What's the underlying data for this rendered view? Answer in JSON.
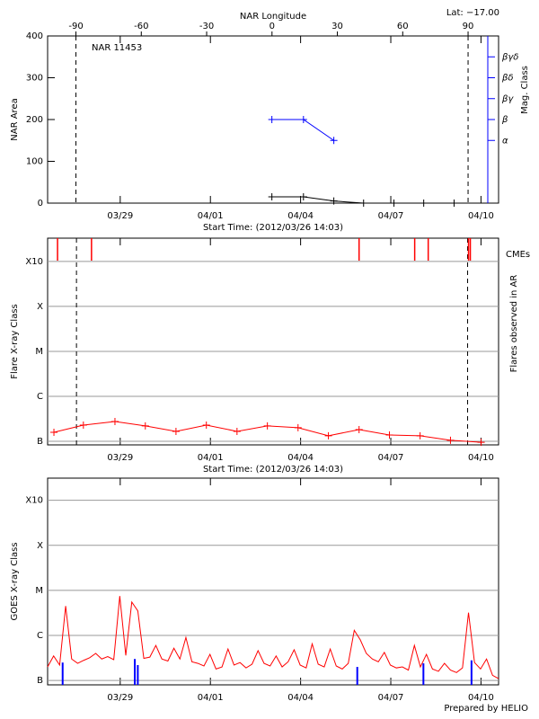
{
  "chart_data": [
    {
      "type": "line",
      "title": "NAR 11453",
      "annotation": "Lat: −17.00",
      "xlabel": "Start Time: (2012/03/26 14:03)",
      "ylabel": "NAR Area",
      "xlim": [
        0,
        15
      ],
      "xticks": [
        {
          "value": 2.415,
          "label": "03/29"
        },
        {
          "value": 5.415,
          "label": "04/01"
        },
        {
          "value": 8.415,
          "label": "04/04"
        },
        {
          "value": 11.415,
          "label": "04/07"
        },
        {
          "value": 14.415,
          "label": "04/10"
        }
      ],
      "ylim": [
        0,
        400
      ],
      "yticks": [
        0,
        100,
        200,
        300,
        400
      ],
      "x2label": "NAR Longitude",
      "x2lim": [
        -103,
        104
      ],
      "x2ticks": [
        -90,
        -60,
        -30,
        0,
        30,
        60,
        90
      ],
      "vlines_x2": [
        -90,
        90
      ],
      "y2label": "Mag. Class",
      "y2color": "#0000ff",
      "y2lim": [
        0,
        8
      ],
      "y2ticks": [
        {
          "value": 3,
          "label": "α"
        },
        {
          "value": 4,
          "label": "β"
        },
        {
          "value": 5,
          "label": "βγ"
        },
        {
          "value": 6,
          "label": "βδ"
        },
        {
          "value": 7,
          "label": "βγδ"
        }
      ],
      "series": [
        {
          "color": "#000000",
          "x": [
            7.46,
            8.51,
            9.52,
            10.51,
            11.52,
            12.51,
            13.52
          ],
          "values": [
            15,
            15,
            5,
            0,
            0,
            0,
            0
          ]
        },
        {
          "color": "#0000ff",
          "axis": "y2",
          "x": [
            7.46,
            8.51,
            9.52
          ],
          "values": [
            4,
            4,
            3
          ]
        }
      ]
    },
    {
      "type": "line",
      "xlabel": "Start Time: (2012/03/26 14:03)",
      "ylabel": "Flare X-ray Class",
      "y2label": "Flares observed in AR",
      "log_y": true,
      "grid": true,
      "xlim": [
        0,
        15
      ],
      "xticks": [
        {
          "value": 2.415,
          "label": "03/29"
        },
        {
          "value": 5.415,
          "label": "04/01"
        },
        {
          "value": 8.415,
          "label": "04/04"
        },
        {
          "value": 11.415,
          "label": "04/07"
        },
        {
          "value": 14.415,
          "label": "04/10"
        }
      ],
      "ylim": [
        8.3e-08,
        0.0033
      ],
      "yticks": [
        {
          "value": 1e-07,
          "label": "B"
        },
        {
          "value": 1e-06,
          "label": "C"
        },
        {
          "value": 1e-05,
          "label": "M"
        },
        {
          "value": 0.0001,
          "label": "X"
        },
        {
          "value": 0.001,
          "label": "X10"
        }
      ],
      "vlines": [
        0.96,
        13.97
      ],
      "series": [
        {
          "color": "#ff0000",
          "marker": "+",
          "x": [
            0.21,
            1.19,
            2.24,
            3.25,
            4.27,
            5.28,
            6.3,
            7.31,
            8.33,
            9.34,
            10.36,
            11.37,
            12.39,
            13.4,
            14.42
          ],
          "values": [
            1.58e-07,
            2.29e-07,
            2.75e-07,
            2.19e-07,
            1.66e-07,
            2.29e-07,
            1.66e-07,
            2.19e-07,
            2e-07,
            1.32e-07,
            1.82e-07,
            1.38e-07,
            1.32e-07,
            1.05e-07,
            9.5e-08
          ]
        }
      ],
      "cmes": {
        "name": "CMEs",
        "color": "#ff0000",
        "x": [
          0.33,
          1.46,
          10.36,
          12.21,
          12.66,
          14.0,
          14.06
        ]
      }
    },
    {
      "type": "line",
      "ylabel": "GOES X-ray Class",
      "log_y": true,
      "grid": true,
      "xlim": [
        0,
        15
      ],
      "xticks": [
        {
          "value": 2.415,
          "label": "03/29"
        },
        {
          "value": 5.415,
          "label": "04/01"
        },
        {
          "value": 8.415,
          "label": "04/04"
        },
        {
          "value": 11.415,
          "label": "04/07"
        },
        {
          "value": 14.415,
          "label": "04/10"
        }
      ],
      "ylim": [
        8e-08,
        0.0031
      ],
      "yticks": [
        {
          "value": 1e-07,
          "label": "B"
        },
        {
          "value": 1e-06,
          "label": "C"
        },
        {
          "value": 1e-05,
          "label": "M"
        },
        {
          "value": 0.0001,
          "label": "X"
        },
        {
          "value": 0.001,
          "label": "X10"
        }
      ],
      "footer": "Prepared by HELIO",
      "series": [
        {
          "color": "#ff0000",
          "x": [
            0,
            0.2,
            0.4,
            0.6,
            0.8,
            1,
            1.2,
            1.4,
            1.6,
            1.8,
            2,
            2.2,
            2.4,
            2.6,
            2.8,
            3,
            3.2,
            3.4,
            3.6,
            3.8,
            4,
            4.2,
            4.4,
            4.6,
            4.8,
            5,
            5.2,
            5.4,
            5.6,
            5.8,
            6,
            6.2,
            6.4,
            6.6,
            6.8,
            7,
            7.2,
            7.4,
            7.6,
            7.8,
            8,
            8.2,
            8.4,
            8.6,
            8.8,
            9,
            9.2,
            9.4,
            9.6,
            9.8,
            10,
            10.2,
            10.4,
            10.6,
            10.8,
            11,
            11.2,
            11.4,
            11.6,
            11.8,
            12,
            12.2,
            12.4,
            12.6,
            12.8,
            13,
            13.2,
            13.4,
            13.6,
            13.8,
            14,
            14.2,
            14.4,
            14.6,
            14.8,
            15
          ],
          "values": [
            2e-07,
            3.5e-07,
            2.2e-07,
            4.5e-06,
            3e-07,
            2.4e-07,
            2.8e-07,
            3.2e-07,
            4e-07,
            3e-07,
            3.4e-07,
            2.9e-07,
            7.5e-06,
            3.6e-07,
            5.5e-06,
            3.5e-06,
            3.1e-07,
            3.3e-07,
            6e-07,
            3e-07,
            2.7e-07,
            5.2e-07,
            3e-07,
            9e-07,
            2.6e-07,
            2.4e-07,
            2.1e-07,
            3.8e-07,
            1.8e-07,
            2e-07,
            5e-07,
            2.2e-07,
            2.5e-07,
            1.9e-07,
            2.3e-07,
            4.6e-07,
            2.4e-07,
            2.1e-07,
            3.5e-07,
            2e-07,
            2.6e-07,
            4.8e-07,
            2.2e-07,
            1.9e-07,
            6.5e-07,
            2.3e-07,
            2e-07,
            5e-07,
            2.1e-07,
            1.8e-07,
            2.4e-07,
            1.3e-06,
            8e-07,
            4e-07,
            3e-07,
            2.6e-07,
            4.2e-07,
            2.2e-07,
            1.9e-07,
            2e-07,
            1.7e-07,
            6e-07,
            2e-07,
            3.8e-07,
            1.8e-07,
            1.6e-07,
            2.4e-07,
            1.7e-07,
            1.5e-07,
            1.9e-07,
            3.2e-06,
            2.5e-07,
            1.8e-07,
            3e-07,
            1.3e-07,
            1.1e-07
          ]
        },
        {
          "color": "#0000ff",
          "style": "spike",
          "x": [
            0.5,
            2.9,
            3.0,
            10.3,
            12.5,
            14.1
          ],
          "values": [
            2.5e-07,
            3e-07,
            2.2e-07,
            2e-07,
            2.4e-07,
            2.8e-07
          ]
        }
      ]
    }
  ]
}
